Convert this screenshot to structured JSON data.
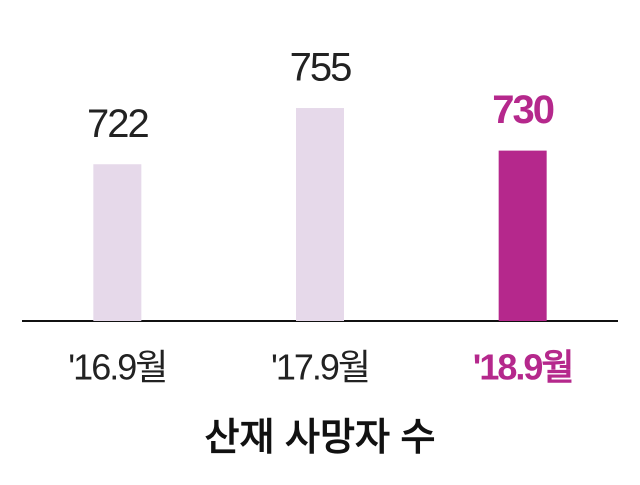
{
  "chart_data": {
    "type": "bar",
    "title": "산재 사망자 수",
    "categories": [
      "'16.9월",
      "'17.9월",
      "'18.9월"
    ],
    "values": [
      722,
      755,
      730
    ],
    "colors": [
      "#e6d9ea",
      "#e6d9ea",
      "#b5288c"
    ],
    "highlight": 2,
    "ylim": [
      630,
      760
    ]
  }
}
